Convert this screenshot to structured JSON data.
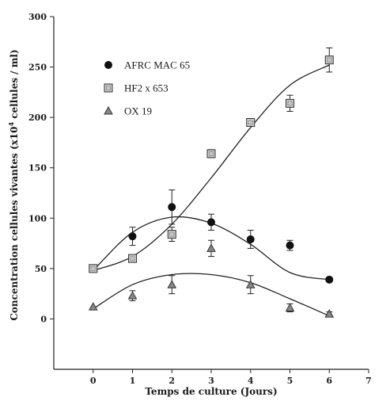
{
  "chart_data": {
    "type": "scatter",
    "xlabel": "Temps de culture (Jours)",
    "ylabel_parts": [
      "Concentration cellules vivantes (x10",
      "4",
      " cellules / ml)"
    ],
    "x_ticks": [
      "0",
      "1",
      "2",
      "3",
      "4",
      "5",
      "6",
      "7"
    ],
    "y_ticks": [
      "0",
      "50",
      "100",
      "150",
      "200",
      "250",
      "300"
    ],
    "xlim": [
      -1,
      7
    ],
    "ylim": [
      -50,
      300
    ],
    "grid": false,
    "legend_position": "top-left",
    "series": [
      {
        "name": "AFRC MAC 65",
        "marker": "filled-circle",
        "x": [
          0,
          1,
          2,
          3,
          4,
          5,
          6
        ],
        "y": [
          50,
          82,
          111,
          96,
          79,
          73,
          39
        ],
        "err": [
          0,
          9,
          17,
          8,
          9,
          5,
          2
        ],
        "fit": [
          48,
          86,
          101,
          95,
          74,
          46,
          39
        ]
      },
      {
        "name": "HF2 x 653",
        "marker": "dotted-square",
        "x": [
          0,
          1,
          2,
          3,
          4,
          5,
          6
        ],
        "y": [
          50,
          60,
          84,
          164,
          195,
          214,
          257
        ],
        "err": [
          0,
          3,
          7,
          4,
          3,
          8,
          12
        ],
        "fit": [
          48,
          62,
          94,
          140,
          190,
          232,
          252
        ]
      },
      {
        "name": "OX 19",
        "marker": "triangle",
        "x": [
          0,
          1,
          2,
          3,
          4,
          5,
          6
        ],
        "y": [
          12,
          23,
          34,
          70,
          34,
          11,
          5
        ],
        "err": [
          0,
          5,
          9,
          8,
          9,
          4,
          2
        ],
        "fit": [
          10,
          34,
          44,
          44,
          36,
          20,
          3
        ]
      }
    ]
  }
}
